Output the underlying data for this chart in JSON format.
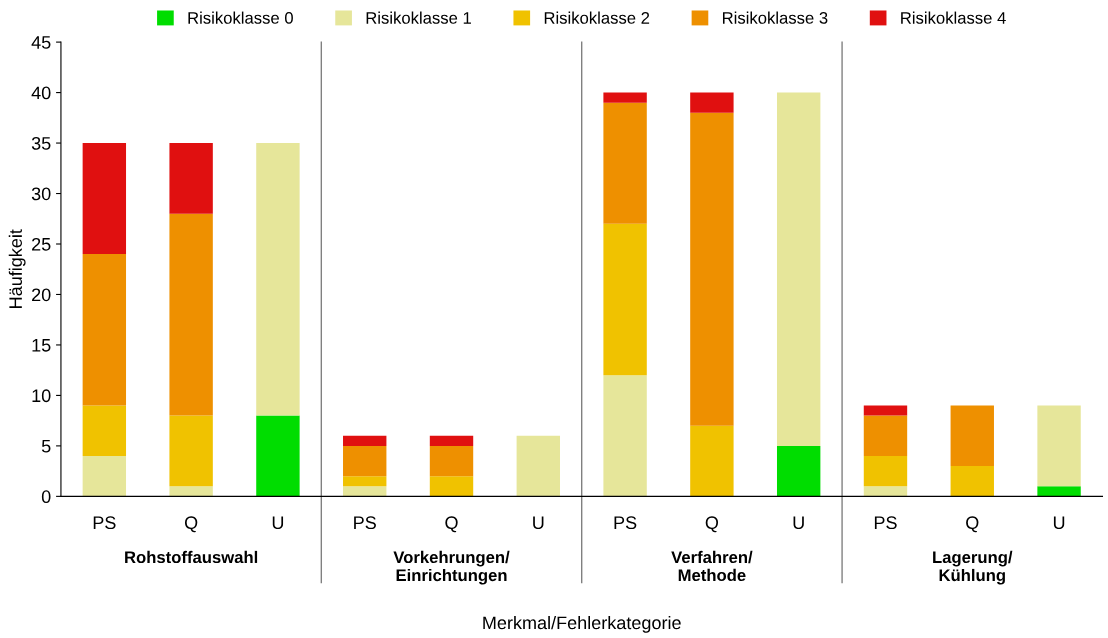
{
  "chart_data": {
    "type": "bar",
    "stacked": true,
    "xlabel": "Merkmal/Fehlerkategorie",
    "ylabel": "Häufigkeit",
    "categories": [
      "PS",
      "Q",
      "U",
      "PS",
      "Q",
      "U",
      "PS",
      "Q",
      "U",
      "PS",
      "Q",
      "U"
    ],
    "annotations": [
      "Rohstoffauswahl",
      "Vorkehrungen/\nEinrichtungen",
      "Verfahren/\nMethode",
      "Lagerung/\nKühlung"
    ],
    "series": [
      {
        "name": "Risikoklasse 0",
        "color": "#00dd00",
        "values": [
          null,
          null,
          8,
          null,
          null,
          null,
          null,
          null,
          5,
          null,
          null,
          1
        ]
      },
      {
        "name": "Risikoklasse 1",
        "color": "#e6e69a",
        "values": [
          4,
          1,
          27,
          1,
          null,
          6,
          12,
          null,
          35,
          1,
          null,
          8
        ]
      },
      {
        "name": "Risikoklasse 2",
        "color": "#f0c200",
        "values": [
          5,
          7,
          null,
          1,
          2,
          null,
          15,
          7,
          null,
          3,
          3,
          null
        ]
      },
      {
        "name": "Risikoklasse 3",
        "color": "#ee9000",
        "values": [
          15,
          20,
          null,
          3,
          3,
          null,
          12,
          31,
          null,
          4,
          6,
          null
        ]
      },
      {
        "name": "Risikoklasse 4",
        "color": "#e01010",
        "values": [
          11,
          7,
          null,
          1,
          1,
          null,
          1,
          2,
          null,
          1,
          null,
          null
        ]
      }
    ],
    "ylim": [
      0,
      45
    ],
    "yticks": [
      0,
      5,
      10,
      15,
      20,
      25,
      30,
      35,
      40,
      45
    ],
    "grid": false,
    "legend": "top"
  }
}
